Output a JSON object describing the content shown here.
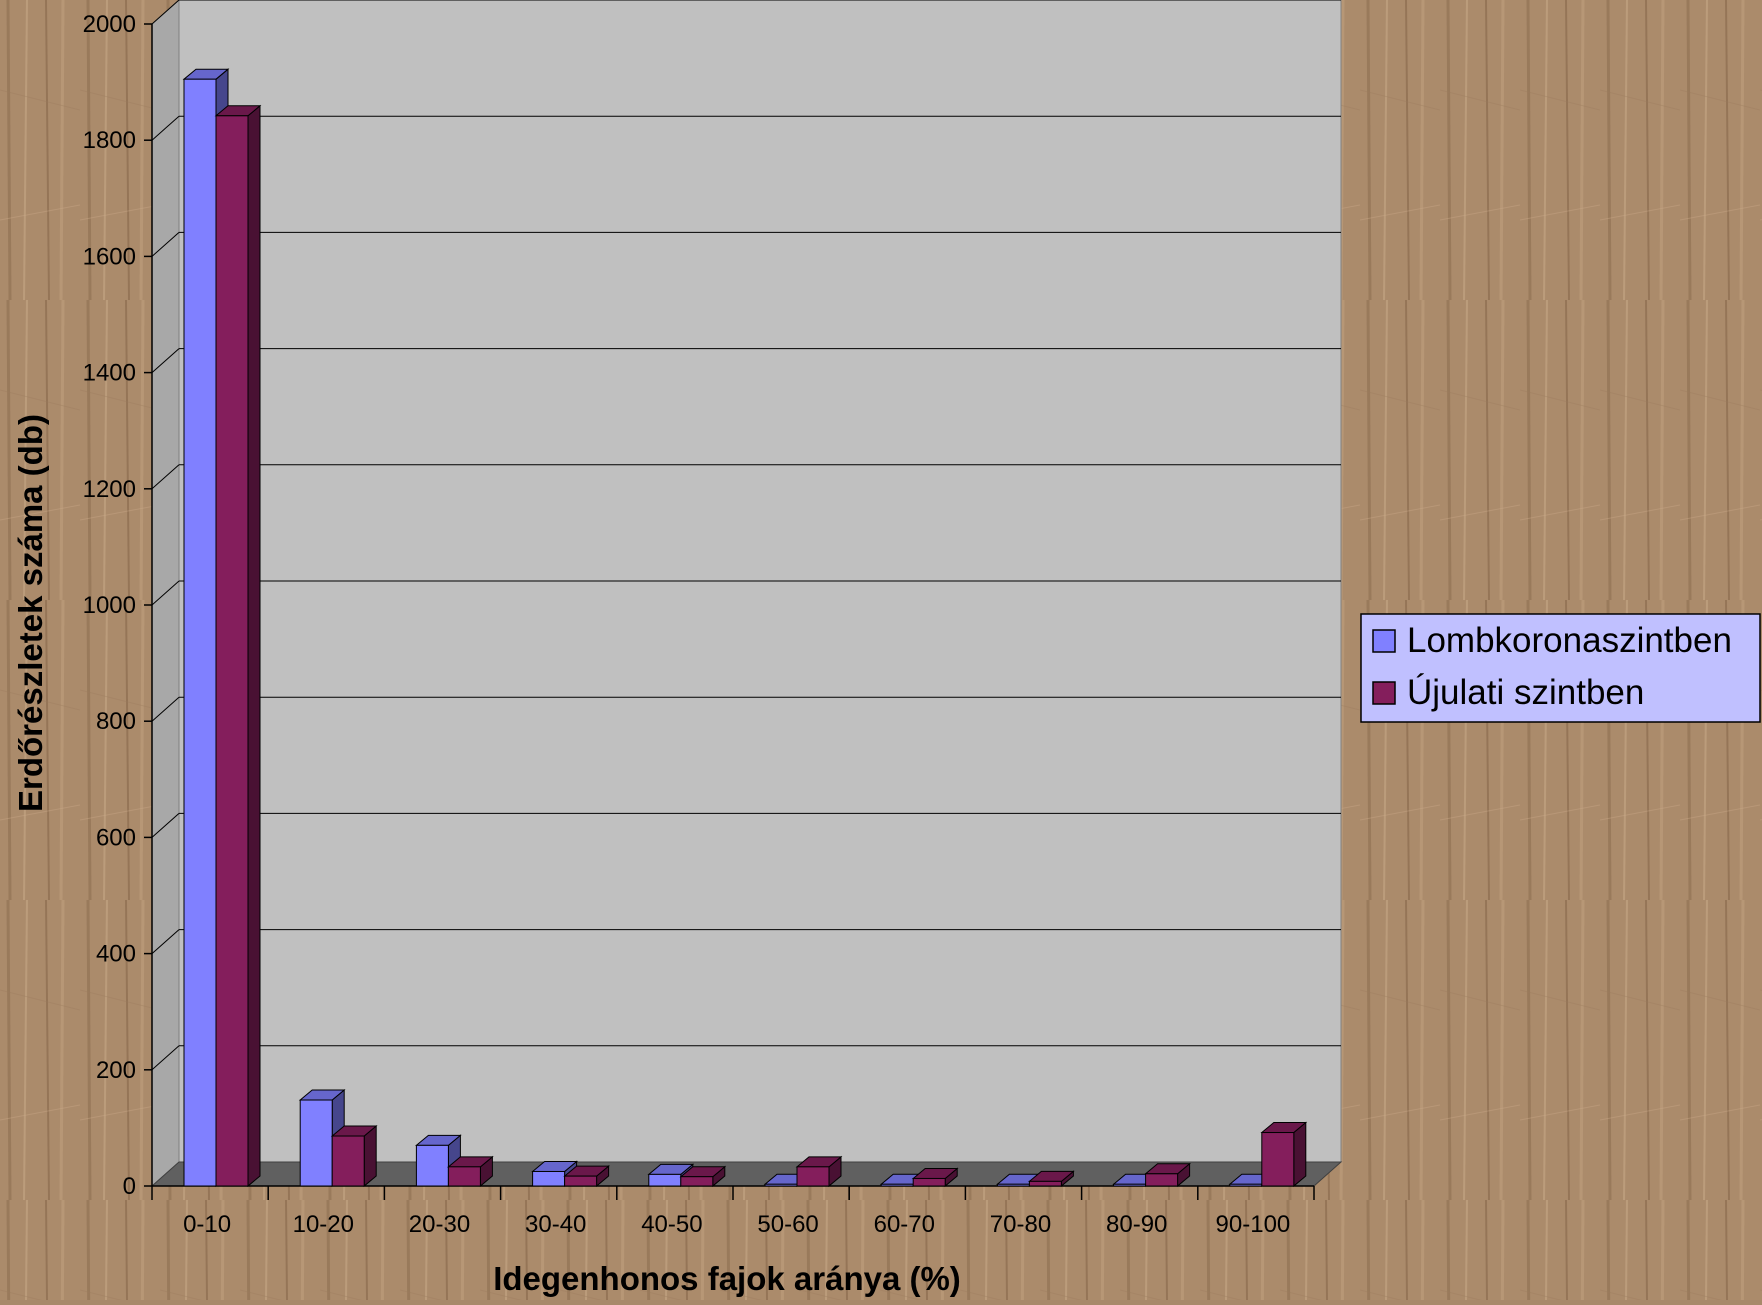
{
  "chart_data": {
    "type": "bar",
    "title": "",
    "xlabel": "Idegenhonos fajok aránya (%)",
    "ylabel": "Erdőrészletek száma (db)",
    "categories": [
      "0-10",
      "10-20",
      "20-30",
      "30-40",
      "40-50",
      "50-60",
      "60-70",
      "70-80",
      "80-90",
      "90-100"
    ],
    "series": [
      {
        "name": "Lombkoronaszintben",
        "color": "#8080ff",
        "values": [
          1905,
          148,
          70,
          25,
          20,
          3,
          3,
          3,
          3,
          3
        ]
      },
      {
        "name": "Újulati szintben",
        "color": "#841e5c",
        "values": [
          1842,
          86,
          33,
          17,
          16,
          33,
          13,
          8,
          21,
          92
        ]
      }
    ],
    "ylim": [
      0,
      2000
    ],
    "yticks": [
      0,
      200,
      400,
      600,
      800,
      1000,
      1200,
      1400,
      1600,
      1800,
      2000
    ],
    "grid": true,
    "legend_position": "right",
    "colors": {
      "plot_background": "#c0c0c0",
      "floor": "#606060",
      "gridline": "#000000"
    }
  }
}
